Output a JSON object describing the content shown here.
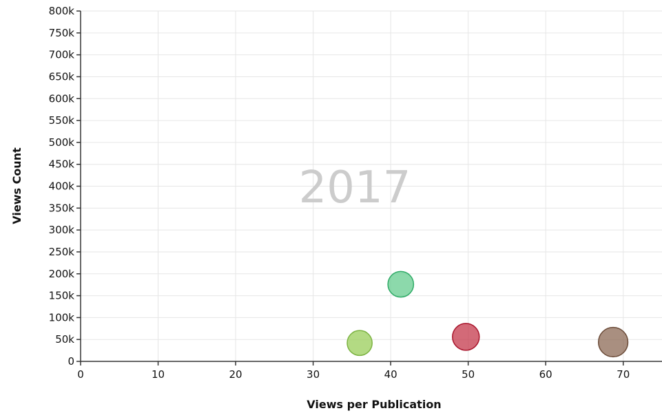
{
  "chart_data": {
    "type": "scatter",
    "title": "",
    "watermark": "2017",
    "xlabel": "Views per Publication",
    "ylabel": "Views Count",
    "xlim": [
      0,
      75
    ],
    "ylim": [
      0,
      800000
    ],
    "grid": true,
    "x_ticks": [
      0,
      10,
      20,
      30,
      40,
      50,
      60,
      70
    ],
    "x_tick_labels": [
      "0",
      "10",
      "20",
      "30",
      "40",
      "50",
      "60",
      "70"
    ],
    "y_ticks": [
      0,
      50000,
      100000,
      150000,
      200000,
      250000,
      300000,
      350000,
      400000,
      450000,
      500000,
      550000,
      600000,
      650000,
      700000,
      750000,
      800000
    ],
    "y_tick_labels": [
      "0",
      "50k",
      "100k",
      "150k",
      "200k",
      "250k",
      "300k",
      "350k",
      "400k",
      "450k",
      "500k",
      "550k",
      "600k",
      "650k",
      "700k",
      "750k",
      "800k"
    ],
    "points": [
      {
        "x": 36.0,
        "y": 42000,
        "color": "#9acd5a",
        "stroke": "#7cb342"
      },
      {
        "x": 41.3,
        "y": 176000,
        "color": "#66cc8f",
        "stroke": "#2eaa66"
      },
      {
        "x": 49.7,
        "y": 56000,
        "color": "#c4384b",
        "stroke": "#a8132a"
      },
      {
        "x": 68.7,
        "y": 44000,
        "color": "#8c6a55",
        "stroke": "#6b4b38"
      }
    ]
  }
}
